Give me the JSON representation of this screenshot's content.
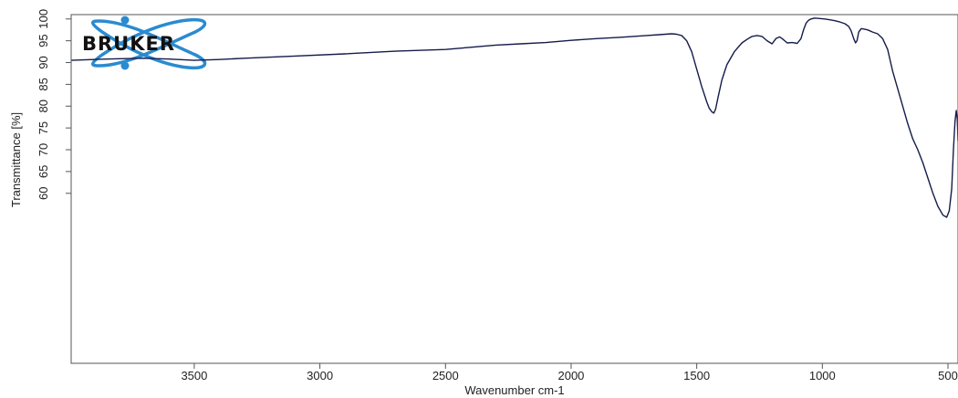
{
  "chart_data": {
    "type": "line",
    "title": "",
    "xlabel": "Wavenumber cm-1",
    "ylabel": "Transmittance [%]",
    "xlim": [
      3990,
      460
    ],
    "ylim": [
      21,
      101
    ],
    "x_ticks": [
      3500,
      3000,
      2500,
      2000,
      1500,
      1000,
      500
    ],
    "y_ticks": [
      60,
      65,
      70,
      75,
      80,
      85,
      90,
      95,
      100
    ],
    "grid": false,
    "legend": "none",
    "logo": "BRUKER",
    "colors": {
      "line": "#141c4a",
      "logo": "#2a8bd0"
    },
    "series": [
      {
        "x": [
          3990,
          3850,
          3700,
          3600,
          3500,
          3400,
          3300,
          3100,
          2900,
          2700,
          2500,
          2400,
          2300,
          2200,
          2100,
          2000,
          1900,
          1800,
          1700,
          1650,
          1600,
          1580,
          1560,
          1540,
          1520,
          1500,
          1480,
          1460,
          1450,
          1440,
          1432,
          1425,
          1415,
          1400,
          1380,
          1350,
          1320,
          1300,
          1280,
          1260,
          1240,
          1220,
          1200,
          1185,
          1170,
          1160,
          1150,
          1140,
          1120,
          1100,
          1085,
          1075,
          1065,
          1055,
          1045,
          1030,
          1010,
          990,
          970,
          950,
          930,
          910,
          895,
          885,
          875,
          868,
          862,
          855,
          845,
          835,
          820,
          800,
          780,
          760,
          740,
          720,
          700,
          680,
          660,
          640,
          620,
          600,
          580,
          560,
          540,
          520,
          505,
          495,
          485,
          478,
          472,
          467,
          463,
          460
        ],
        "y": [
          90.5,
          90.8,
          91.0,
          90.8,
          90.5,
          90.7,
          91.0,
          91.5,
          92.0,
          92.6,
          93.0,
          93.5,
          94.0,
          94.3,
          94.6,
          95.1,
          95.5,
          95.8,
          96.2,
          96.4,
          96.6,
          96.5,
          96.2,
          95.0,
          92.5,
          88.5,
          84.5,
          81.0,
          79.5,
          78.7,
          78.4,
          79.3,
          82.0,
          86.0,
          89.5,
          92.5,
          94.5,
          95.3,
          96.0,
          96.2,
          96.0,
          95.0,
          94.3,
          95.5,
          95.9,
          95.5,
          95.0,
          94.5,
          94.6,
          94.4,
          95.5,
          97.5,
          99.0,
          99.7,
          100.0,
          100.2,
          100.1,
          100.0,
          99.8,
          99.6,
          99.3,
          98.9,
          98.3,
          97.2,
          95.5,
          94.5,
          95.0,
          97.0,
          97.8,
          97.7,
          97.5,
          97.0,
          96.6,
          95.5,
          93.0,
          88.0,
          84.0,
          80.0,
          76.0,
          72.5,
          70.0,
          67.0,
          63.5,
          60.0,
          57.0,
          55.0,
          54.5,
          56.0,
          61.0,
          70.0,
          76.5,
          79.0,
          77.0,
          72.0
        ]
      }
    ]
  }
}
